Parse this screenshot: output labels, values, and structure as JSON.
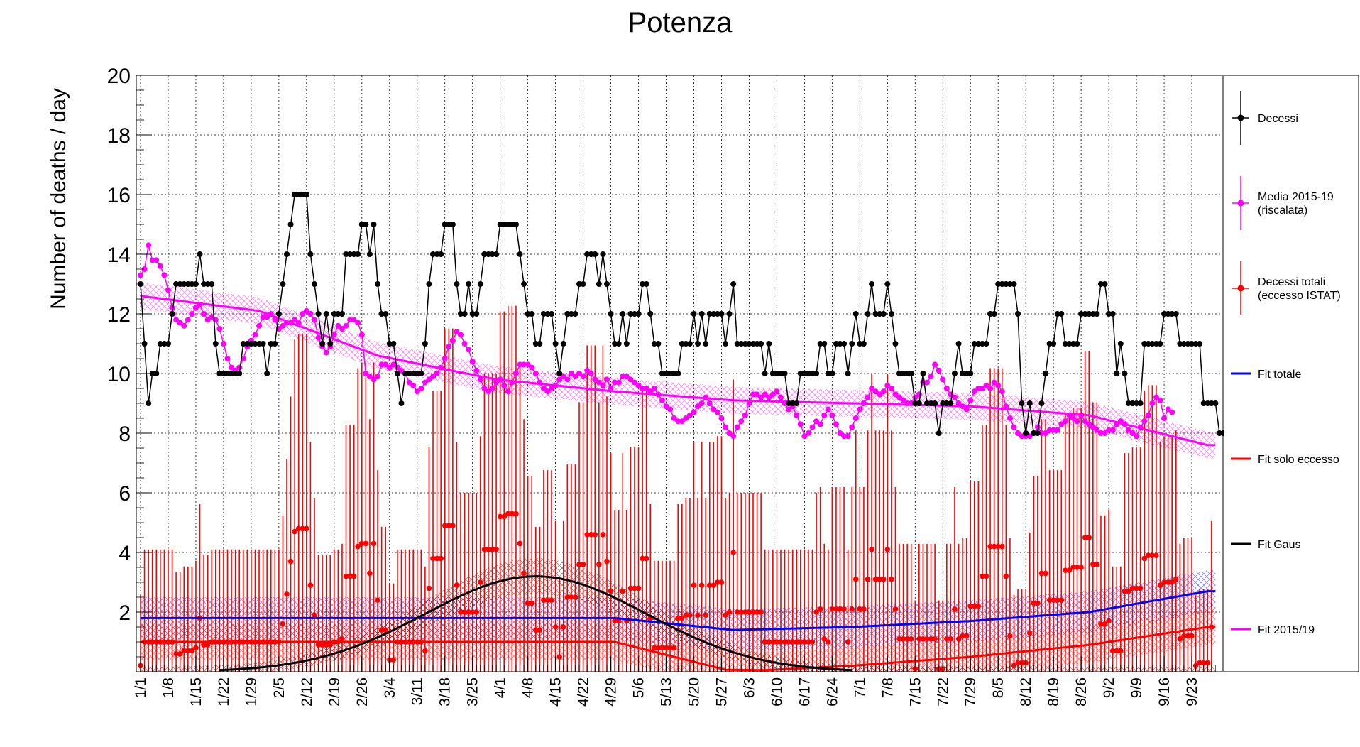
{
  "chart_data": {
    "type": "line",
    "title": "Potenza",
    "ylabel": "Number of deaths / day",
    "xlabel": "",
    "ylim": [
      0,
      20
    ],
    "yticks": [
      2,
      4,
      6,
      8,
      10,
      12,
      14,
      16,
      18,
      20
    ],
    "x_start": "1/1",
    "x_end": "9/30",
    "xtick_labels": [
      "1/1",
      "1/8",
      "1/15",
      "1/22",
      "1/29",
      "2/5",
      "2/12",
      "2/19",
      "2/26",
      "3/4",
      "3/11",
      "3/18",
      "3/25",
      "4/1",
      "4/8",
      "4/15",
      "4/22",
      "4/29",
      "5/6",
      "5/13",
      "5/20",
      "5/27",
      "6/3",
      "6/10",
      "6/17",
      "6/24",
      "7/1",
      "7/8",
      "7/15",
      "7/22",
      "7/29",
      "8/5",
      "8/12",
      "8/19",
      "8/26",
      "9/2",
      "9/9",
      "9/16",
      "9/23"
    ],
    "grid": true,
    "legend_position": "right",
    "colors": {
      "decessi": "#000000",
      "media": "#ff00ff",
      "istat": "#ff0000",
      "fit_totale": "#0000ff",
      "fit_eccesso": "#ff0000",
      "fit_gaus": "#000000",
      "fit_2015": "#ff00ff"
    },
    "legend": [
      {
        "key": "decessi",
        "label": "Decessi",
        "style": "points"
      },
      {
        "key": "media",
        "label": "Media 2015-19",
        "label2": "(riscalata)",
        "style": "points"
      },
      {
        "key": "istat",
        "label": "Decessi totali",
        "label2": "(eccesso ISTAT)",
        "style": "points"
      },
      {
        "key": "fit_totale",
        "label": "Fit totale",
        "style": "line"
      },
      {
        "key": "fit_eccesso",
        "label": "Fit solo eccesso",
        "style": "line"
      },
      {
        "key": "fit_gaus",
        "label": "Fit Gaus",
        "style": "line"
      },
      {
        "key": "fit_2015",
        "label": "Fit 2015/19",
        "style": "line"
      }
    ],
    "series": [
      {
        "key": "decessi",
        "name": "Decessi",
        "start_day": 0,
        "values": [
          13,
          11,
          9,
          10,
          10,
          11,
          11,
          11,
          12,
          13,
          13,
          13,
          13,
          13,
          13,
          14,
          13,
          13,
          13,
          11,
          10,
          10,
          10,
          10,
          10,
          10,
          11,
          11,
          11,
          11,
          11,
          11,
          10,
          11,
          11,
          12,
          13,
          14,
          15,
          16,
          16,
          16,
          16,
          14,
          13,
          12,
          11,
          12,
          11,
          12,
          12,
          12,
          14,
          14,
          14,
          14,
          15,
          15,
          14,
          15,
          13,
          12,
          12,
          11,
          11,
          10,
          9,
          10,
          10,
          10,
          10,
          10,
          11,
          13,
          14,
          14,
          14,
          15,
          15,
          15,
          13,
          12,
          12,
          13,
          12,
          12,
          13,
          14,
          14,
          14,
          14,
          15,
          15,
          15,
          15,
          15,
          14,
          13,
          12,
          12,
          11,
          11,
          12,
          12,
          12,
          11,
          10,
          11,
          12,
          12,
          12,
          13,
          13,
          14,
          14,
          14,
          13,
          14,
          13,
          12,
          11,
          11,
          12,
          11,
          12,
          12,
          12,
          13,
          13,
          12,
          11,
          11,
          10,
          10,
          10,
          10,
          10,
          11,
          11,
          11,
          12,
          11,
          12,
          11,
          12,
          12,
          12,
          12,
          11,
          12,
          13,
          11,
          11,
          11,
          11,
          11,
          11,
          11,
          10,
          11,
          10,
          10,
          10,
          10,
          9,
          9,
          9,
          10,
          10,
          10,
          10,
          10,
          11,
          11,
          10,
          10,
          11,
          11,
          11,
          10,
          11,
          12,
          11,
          11,
          12,
          13,
          12,
          12,
          12,
          13,
          12,
          11,
          10,
          10,
          10,
          10,
          9,
          9,
          10,
          9,
          9,
          9,
          8,
          9,
          9,
          9,
          10,
          11,
          10,
          10,
          10,
          11,
          11,
          11,
          11,
          12,
          12,
          13,
          13,
          13,
          13,
          13,
          12,
          9,
          8,
          9,
          8,
          8,
          9,
          10,
          11,
          11,
          12,
          12,
          11,
          11,
          11,
          11,
          12,
          12,
          12,
          12,
          12,
          13,
          13,
          12,
          12,
          10,
          11,
          10,
          9,
          9,
          9,
          9,
          11,
          11,
          11,
          11,
          11,
          12,
          12,
          12,
          12,
          11,
          11,
          11,
          11,
          11,
          11,
          9,
          9,
          9,
          9,
          8,
          8,
          8,
          8,
          9
        ]
      },
      {
        "key": "media",
        "name": "Media 2015-19 (riscalata)",
        "start_day": 0,
        "values": [
          13.3,
          13.5,
          14.3,
          13.8,
          13.8,
          13.6,
          13.3,
          12.8,
          12.2,
          11.8,
          11.7,
          11.6,
          11.8,
          12.0,
          12.2,
          12.3,
          12.0,
          11.8,
          11.9,
          11.8,
          11.5,
          11.0,
          10.5,
          10.2,
          10.1,
          10.2,
          10.5,
          10.9,
          11.1,
          11.3,
          11.6,
          11.9,
          11.9,
          12.0,
          11.8,
          11.5,
          11.6,
          11.7,
          11.7,
          11.8,
          11.7,
          12.0,
          12.1,
          12.0,
          11.8,
          11.2,
          10.9,
          10.7,
          10.9,
          11.3,
          11.6,
          11.5,
          11.6,
          11.8,
          11.8,
          11.7,
          11.3,
          10.0,
          9.9,
          9.8,
          9.9,
          10.3,
          10.3,
          10.2,
          10.3,
          10.2,
          10.1,
          10.0,
          9.7,
          9.6,
          9.4,
          9.5,
          9.7,
          9.8,
          9.9,
          10.0,
          10.2,
          10.5,
          10.9,
          11.1,
          11.4,
          11.3,
          11.0,
          10.8,
          10.4,
          10.1,
          9.8,
          9.5,
          9.4,
          9.5,
          9.7,
          9.8,
          9.6,
          9.4,
          9.7,
          10.0,
          10.3,
          10.3,
          10.3,
          10.2,
          10.0,
          9.7,
          9.5,
          9.4,
          9.5,
          9.6,
          9.8,
          9.9,
          9.8,
          10.0,
          9.9,
          10.0,
          9.9,
          10.1,
          10.0,
          9.8,
          9.7,
          9.6,
          9.8,
          9.5,
          9.7,
          9.7,
          9.9,
          9.9,
          9.8,
          9.7,
          9.6,
          9.5,
          9.5,
          9.4,
          9.5,
          9.3,
          9.1,
          8.9,
          8.8,
          8.5,
          8.4,
          8.4,
          8.5,
          8.6,
          8.7,
          8.9,
          9.0,
          9.2,
          9.0,
          8.8,
          8.7,
          8.5,
          8.2,
          8.0,
          7.9,
          8.2,
          8.4,
          8.6,
          9.0,
          9.3,
          9.3,
          9.2,
          9.3,
          9.2,
          9.3,
          9.4,
          9.2,
          9.0,
          8.8,
          8.9,
          8.6,
          8.3,
          7.9,
          8.0,
          8.2,
          8.4,
          8.3,
          8.6,
          8.8,
          8.6,
          8.3,
          8.0,
          7.9,
          7.9,
          8.2,
          8.5,
          8.8,
          9.0,
          9.2,
          9.5,
          9.4,
          9.3,
          9.4,
          9.6,
          9.5,
          9.3,
          9.2,
          9.1,
          9.0,
          9.0,
          9.2,
          9.3,
          9.7,
          9.7,
          9.9,
          10.3,
          10.1,
          9.8,
          9.5,
          9.3,
          9.2,
          9.0,
          8.9,
          8.8,
          9.1,
          9.4,
          9.5,
          9.5,
          9.6,
          9.5,
          9.7,
          9.6,
          9.4,
          8.9,
          8.5,
          8.2,
          8.0,
          7.9,
          7.9,
          7.9,
          8.0,
          8.2,
          8.0,
          8.0,
          8.1,
          8.1,
          8.1,
          8.3,
          8.4,
          8.6,
          8.5,
          8.4,
          8.6,
          8.4,
          8.3,
          8.2,
          8.1,
          8.0,
          8.0,
          8.1,
          8.1,
          8.3,
          8.4,
          8.3,
          8.1,
          8.0,
          7.9,
          8.2,
          8.4,
          8.6,
          9.0,
          9.2,
          9.1,
          8.5,
          8.8,
          8.7
        ]
      },
      {
        "key": "istat",
        "name": "Decessi totali (eccesso ISTAT)",
        "start_day": 0,
        "values": [
          0.2,
          1.0,
          1.0,
          1.0,
          1.0,
          1.0,
          1.0,
          1.0,
          1.0,
          0.6,
          0.6,
          0.7,
          0.7,
          0.7,
          0.8,
          1.8,
          0.9,
          0.9,
          1.0,
          1.0,
          1.0,
          1.0,
          1.0,
          1.0,
          1.0,
          1.0,
          1.0,
          1.0,
          1.0,
          1.0,
          1.0,
          1.0,
          1.0,
          1.0,
          1.0,
          1.0,
          1.6,
          2.6,
          3.7,
          4.7,
          4.8,
          4.8,
          4.8,
          2.9,
          1.9,
          0.9,
          0.9,
          0.9,
          0.9,
          1.0,
          1.0,
          1.1,
          3.2,
          3.2,
          3.2,
          4.2,
          4.3,
          4.3,
          3.3,
          4.3,
          2.4,
          1.4,
          1.4,
          0.4,
          0.4,
          1.0,
          1.0,
          1.0,
          1.0,
          1.0,
          1.0,
          1.0,
          0.7,
          2.8,
          3.8,
          3.8,
          3.8,
          4.9,
          4.9,
          4.9,
          2.9,
          2.0,
          2.0,
          2.0,
          2.0,
          2.0,
          3.0,
          4.1,
          4.1,
          4.1,
          4.1,
          5.2,
          5.2,
          5.3,
          5.3,
          5.3,
          4.3,
          3.3,
          2.3,
          2.3,
          1.4,
          1.4,
          2.4,
          2.4,
          2.4,
          1.5,
          0.5,
          1.5,
          2.5,
          2.5,
          2.5,
          3.6,
          3.6,
          4.6,
          4.6,
          4.6,
          3.6,
          4.6,
          3.7,
          2.7,
          1.7,
          1.7,
          2.7,
          1.7,
          2.8,
          2.8,
          2.8,
          3.8,
          3.8,
          1.8,
          0.8,
          0.8,
          0.8,
          0.8,
          0.8,
          0.8,
          1.8,
          1.8,
          1.9,
          1.9,
          2.9,
          1.9,
          2.9,
          1.9,
          2.9,
          2.9,
          3.0,
          3.0,
          1.9,
          2.0,
          4.0,
          2.0,
          2.0,
          2.0,
          2.0,
          2.0,
          2.0,
          2.0,
          1.0,
          1.0,
          1.0,
          1.0,
          1.0,
          1.0,
          1.0,
          1.0,
          1.0,
          1.0,
          1.0,
          1.0,
          1.0,
          2.0,
          2.1,
          1.1,
          1.0,
          2.1,
          2.1,
          2.1,
          2.1,
          1.0,
          2.1,
          3.1,
          2.1,
          2.1,
          3.1,
          4.1,
          3.1,
          3.1,
          3.1,
          4.1,
          3.1,
          2.1,
          1.1,
          1.1,
          1.1,
          1.1,
          0.1,
          1.1,
          1.1,
          1.1,
          1.1,
          1.1,
          0.1,
          0.1,
          1.1,
          1.1,
          2.1,
          1.1,
          1.2,
          1.2,
          2.2,
          2.2,
          2.2,
          3.2,
          3.2,
          4.2,
          4.2,
          4.2,
          4.2,
          3.2,
          1.2,
          0.2,
          0.3,
          0.3,
          0.3,
          1.3,
          2.3,
          2.3,
          3.3,
          3.3,
          2.4,
          2.4,
          2.4,
          2.4,
          3.4,
          3.4,
          3.5,
          3.5,
          3.5,
          4.5,
          4.5,
          3.6,
          3.6,
          1.6,
          1.6,
          1.7,
          0.7,
          0.7,
          0.7,
          2.7,
          2.7,
          2.8,
          2.8,
          2.8,
          3.8,
          3.9,
          3.9,
          3.9,
          2.9,
          3.0,
          3.0,
          3.0,
          3.1,
          1.1,
          1.2,
          1.2,
          1.2,
          0.2,
          0.3,
          0.3,
          0.3,
          1.5
        ]
      }
    ],
    "fits": [
      {
        "key": "fit_2015",
        "name": "Fit 2015/19",
        "x": [
          0,
          30,
          60,
          90,
          120,
          150,
          180,
          210,
          240,
          270
        ],
        "y": [
          12.6,
          12.1,
          10.6,
          9.8,
          9.4,
          9.1,
          9.0,
          8.9,
          8.6,
          7.6
        ],
        "band": 0.45
      },
      {
        "key": "fit_totale",
        "name": "Fit totale",
        "x": [
          0,
          30,
          60,
          90,
          120,
          150,
          180,
          210,
          240,
          270
        ],
        "y": [
          1.8,
          1.8,
          1.8,
          1.8,
          1.8,
          1.4,
          1.5,
          1.7,
          2.0,
          2.7
        ],
        "band": 0.7
      },
      {
        "key": "fit_eccesso",
        "name": "Fit solo eccesso",
        "x": [
          0,
          30,
          60,
          90,
          120,
          150,
          180,
          210,
          240,
          270
        ],
        "y": [
          1.0,
          1.0,
          1.0,
          1.0,
          1.0,
          0.0,
          0.2,
          0.5,
          0.9,
          1.5
        ],
        "band": 0.6
      },
      {
        "key": "fit_gaus",
        "name": "Fit Gaus",
        "mean": 100,
        "sigma": 28,
        "amplitude": 3.2,
        "band": 0.45
      }
    ]
  }
}
